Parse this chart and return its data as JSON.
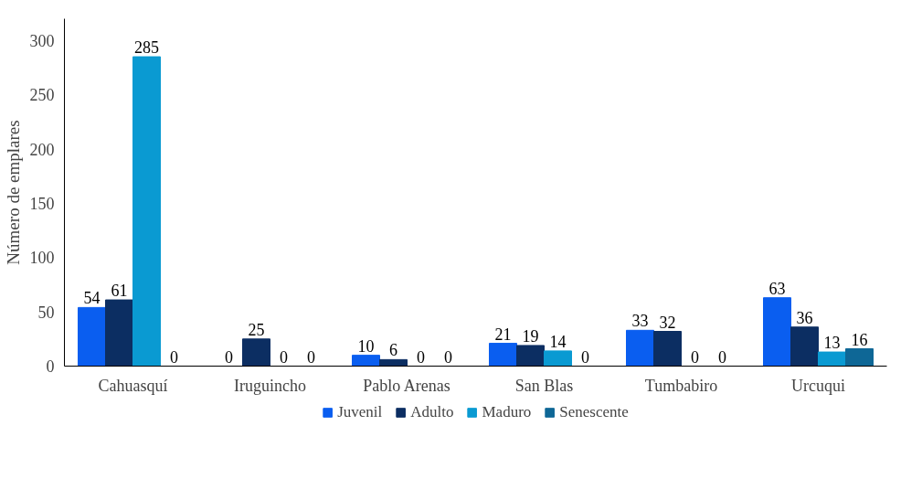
{
  "chart_data": {
    "type": "bar",
    "ylabel": "Número de emplares",
    "categories": [
      "Cahuasquí",
      "Iruguincho",
      "Pablo Arenas",
      "San Blas",
      "Tumbabiro",
      "Urcuqui"
    ],
    "series": [
      {
        "name": "Juvenil",
        "color": "#0a5ef0",
        "values": [
          54,
          0,
          10,
          21,
          33,
          63
        ]
      },
      {
        "name": "Adulto",
        "color": "#0c2e62",
        "values": [
          61,
          25,
          6,
          19,
          32,
          36
        ]
      },
      {
        "name": "Maduro",
        "color": "#0a9ad2",
        "values": [
          285,
          0,
          0,
          14,
          0,
          13
        ]
      },
      {
        "name": "Senescente",
        "color": "#0e6796",
        "values": [
          0,
          0,
          0,
          0,
          0,
          16
        ]
      }
    ],
    "ylim": [
      0,
      320
    ],
    "yticks": [
      0,
      50,
      100,
      150,
      200,
      250,
      300
    ],
    "grid": false,
    "legend": "bottom",
    "data_labels": true
  }
}
